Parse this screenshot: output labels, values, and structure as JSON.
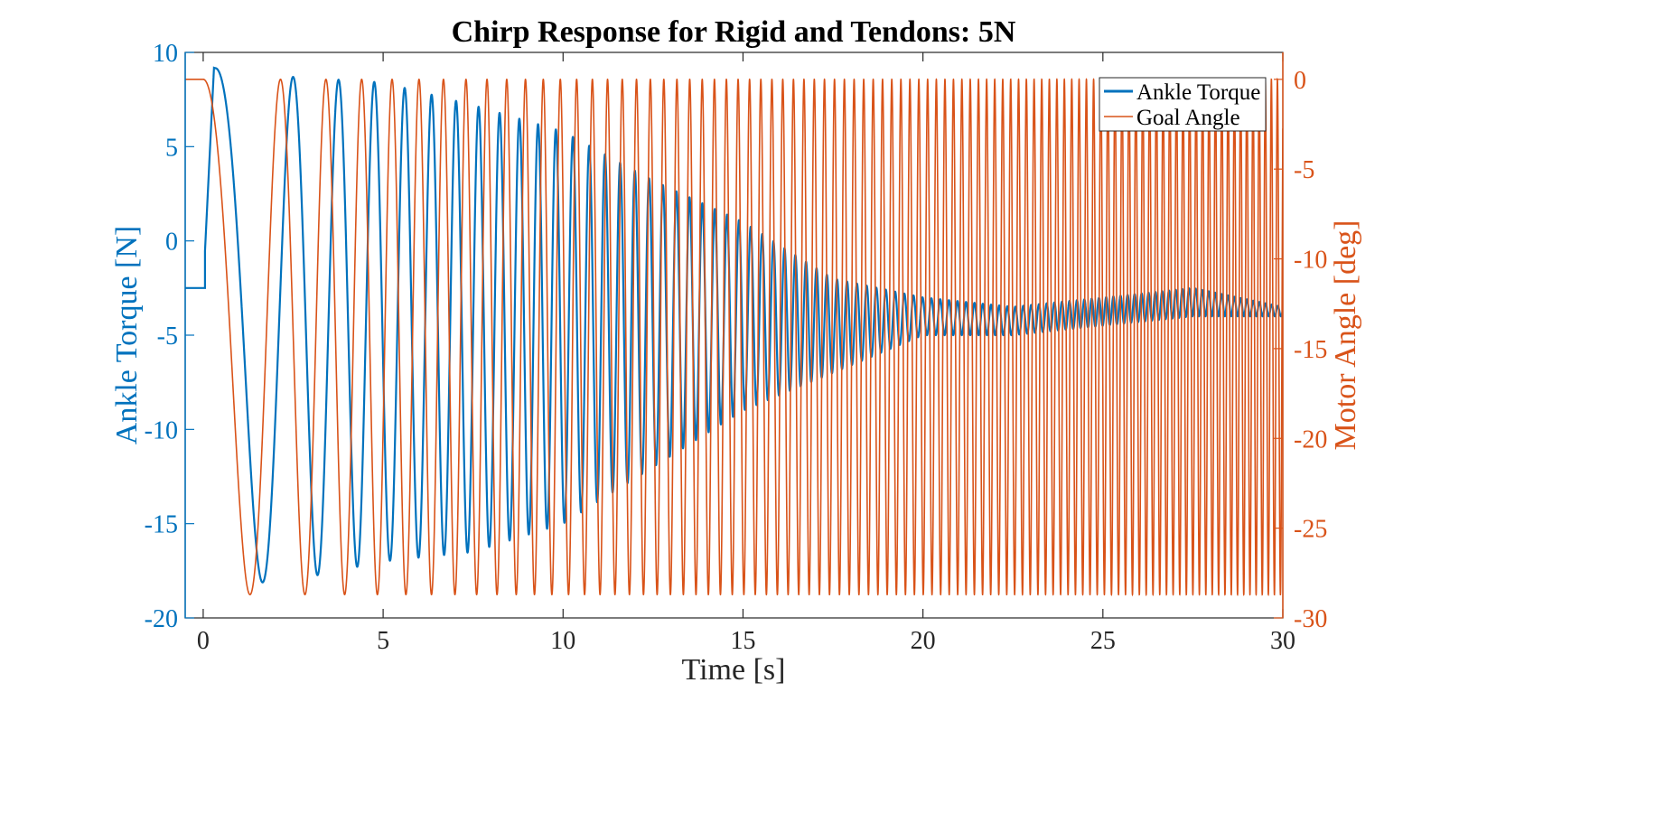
{
  "chart_data": {
    "type": "line",
    "title": "Chirp Response for Rigid and Tendons: 5N",
    "xlabel": "Time [s]",
    "ylabel_left": "Ankle Torque [N]",
    "ylabel_right": "Motor Angle [deg]",
    "xlim": [
      -0.5,
      30
    ],
    "ylim_left": [
      -20,
      10
    ],
    "ylim_right": [
      -30,
      1.5
    ],
    "x_ticks": [
      "0",
      "5",
      "10",
      "15",
      "20",
      "25",
      "30"
    ],
    "y_left_ticks": [
      "10",
      "5",
      "0",
      "-5",
      "-10",
      "-15",
      "-20"
    ],
    "y_right_ticks": [
      "0",
      "-5",
      "-10",
      "-15",
      "-20",
      "-25",
      "-30"
    ],
    "grid": false,
    "legend_position": "top-right",
    "colors": {
      "torque": "#0072BD",
      "goal": "#D95319",
      "axis": "#262626"
    },
    "series": [
      {
        "name": "Ankle Torque",
        "axis": "left",
        "initial_level": -2.5,
        "envelope": {
          "t": [
            0,
            1,
            2.5,
            5,
            7.5,
            10,
            12.5,
            15,
            17.5,
            20,
            22.5,
            25,
            27.5,
            30
          ],
          "upper": [
            9.3,
            8.9,
            8.7,
            8.4,
            7.2,
            5.8,
            3.2,
            1.0,
            -2.0,
            -3.0,
            -3.5,
            -3.0,
            -2.5,
            -3.5
          ],
          "lower": [
            -18.2,
            -18.2,
            -18.0,
            -17.0,
            -16.5,
            -15.0,
            -12.0,
            -9.0,
            -7.0,
            -5.0,
            -5.0,
            -4.5,
            -4.0,
            -4.0
          ]
        }
      },
      {
        "name": "Goal Angle",
        "axis": "right",
        "initial_level": 0,
        "max": 0,
        "min": -28.7,
        "chirp_start_s": 0,
        "f0_hz": 0.26,
        "f1_hz": 6.0
      }
    ]
  }
}
